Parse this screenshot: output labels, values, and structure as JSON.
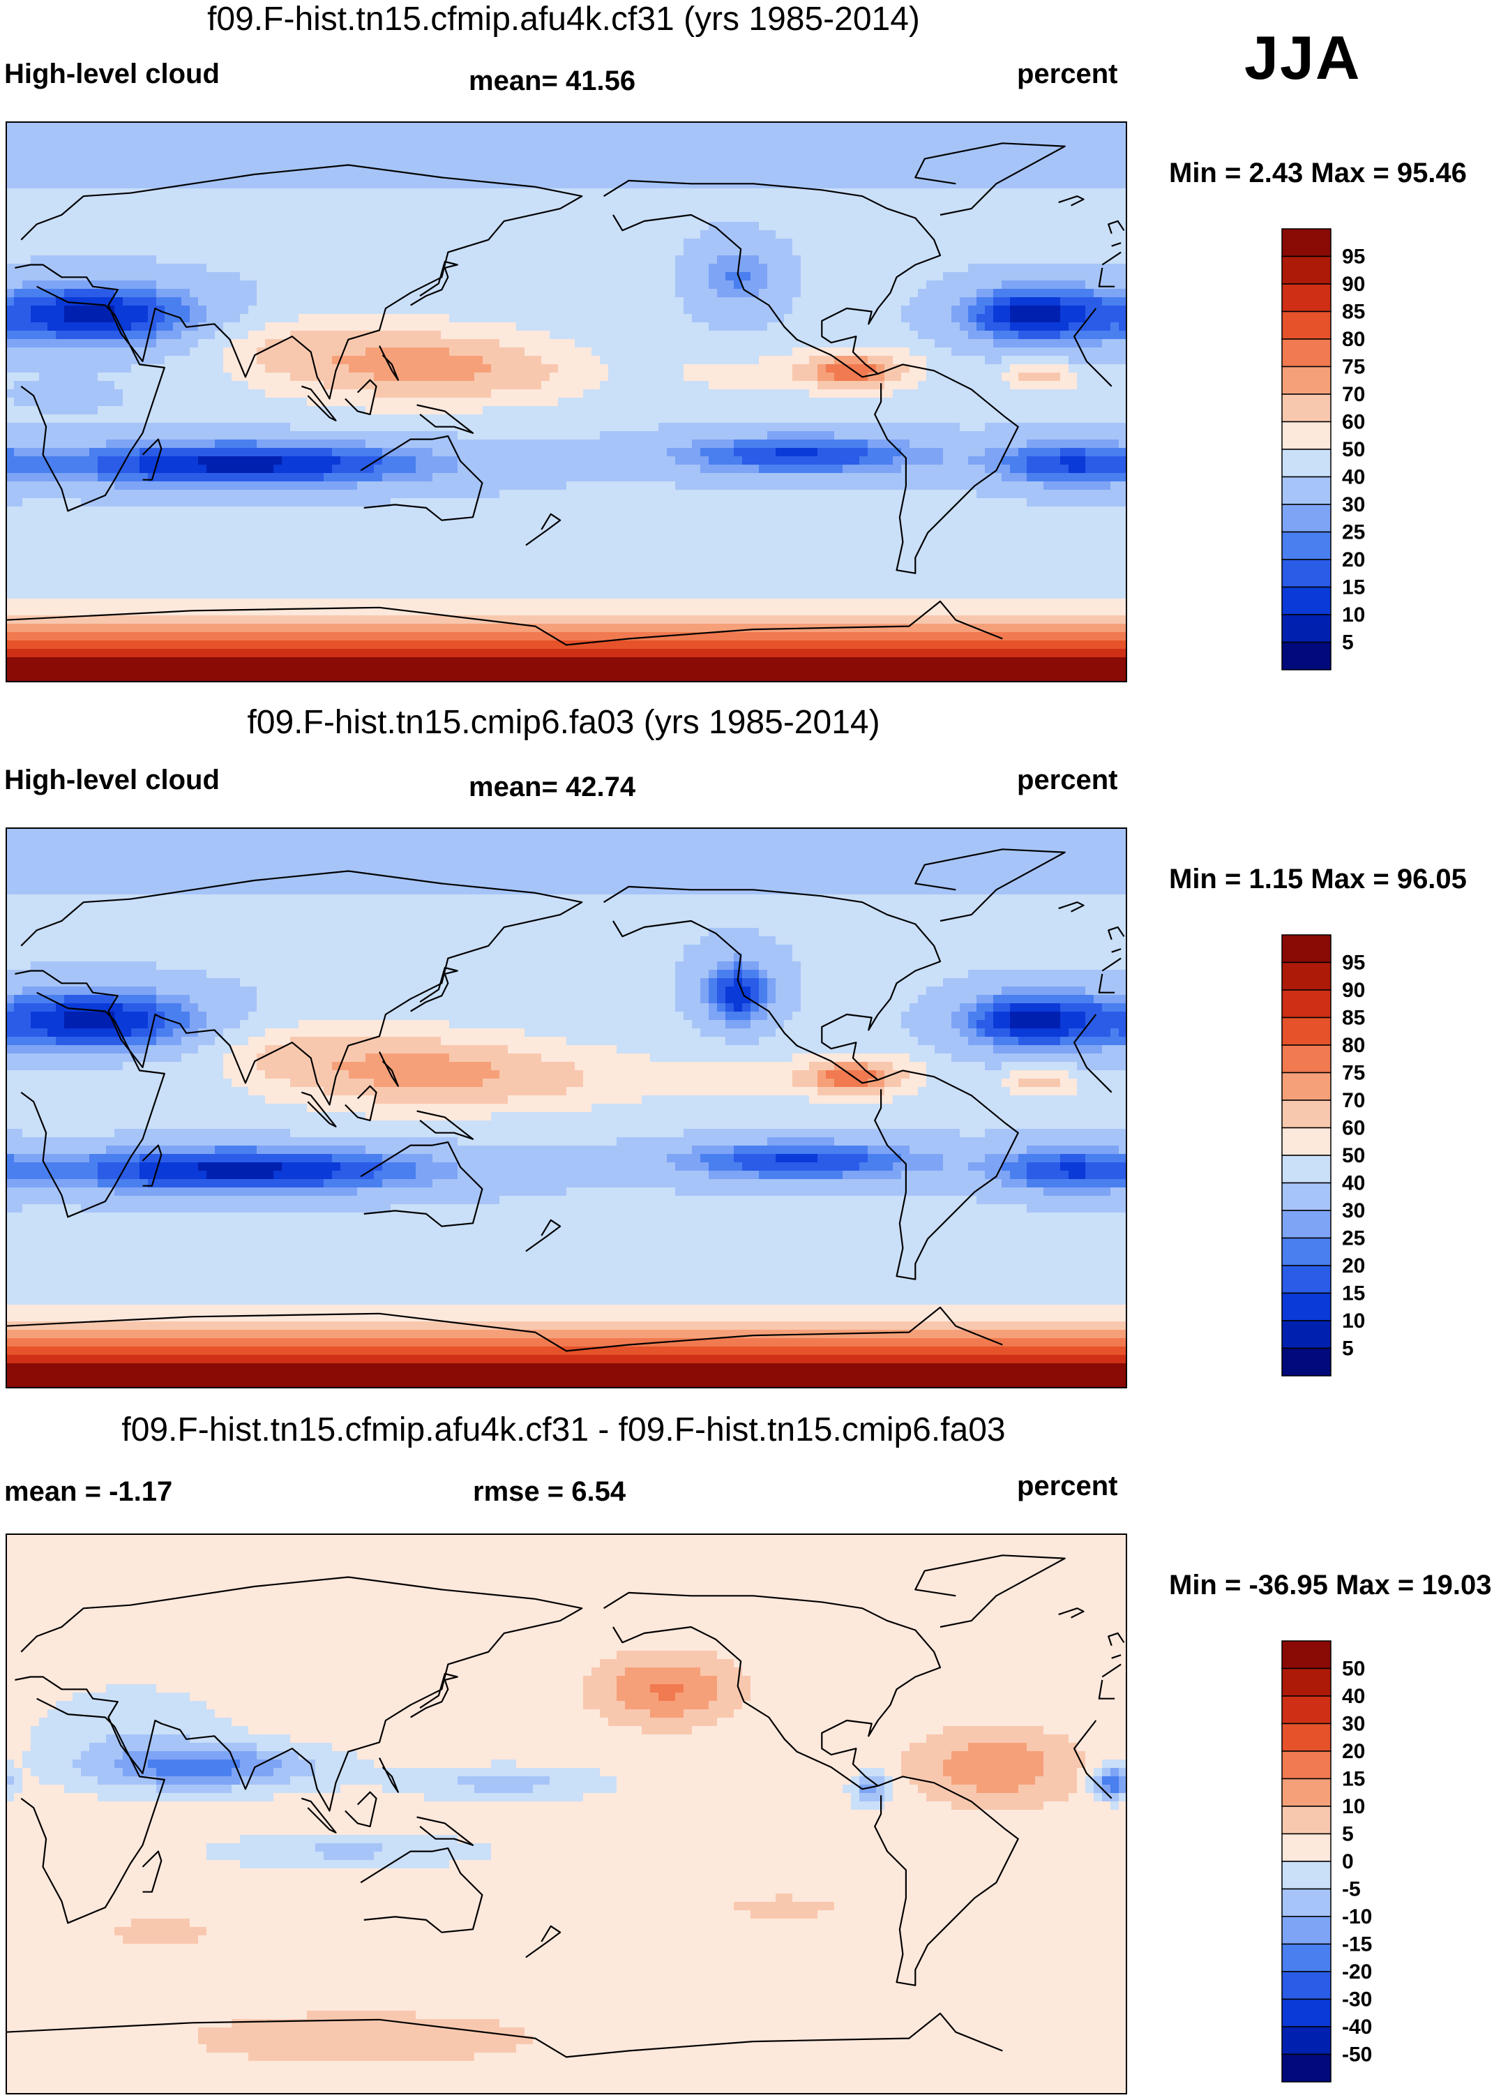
{
  "season": "JJA",
  "colors": {
    "abs_levels": [
      "#000a7a",
      "#0020b0",
      "#0a3ad8",
      "#2a5ce8",
      "#4a7ff0",
      "#7ea4f5",
      "#a6c4f8",
      "#cadff8",
      "#fde8dc",
      "#f8c8ae",
      "#f6a07a",
      "#f17a50",
      "#e6522a",
      "#cf3015",
      "#ae1a08",
      "#8a0a05"
    ],
    "diff_levels": [
      "#000a7a",
      "#0020b0",
      "#0a3ad8",
      "#2a5ce8",
      "#4a7ff0",
      "#7ea4f5",
      "#a6c4f8",
      "#cadff8",
      "#fde8dc",
      "#f8c8ae",
      "#f6a07a",
      "#f17a50",
      "#e6522a",
      "#cf3015",
      "#ae1a08",
      "#8a0a05"
    ],
    "coast": "#000000"
  },
  "chart_data": [
    {
      "type": "heatmap",
      "title": "f09.F-hist.tn15.cfmip.afu4k.cf31 (yrs 1985-2014)",
      "left_label": "High-level cloud",
      "center_label": "mean=  41.56",
      "right_label": "percent",
      "min_max": "Min =   2.43 Max =  95.46",
      "stats": {
        "mean": 41.56,
        "min": 2.43,
        "max": 95.46
      },
      "colorbar_labels": [
        "95",
        "90",
        "85",
        "80",
        "75",
        "70",
        "60",
        "50",
        "40",
        "30",
        "25",
        "20",
        "15",
        "10",
        "5"
      ],
      "lon_range": [
        0,
        360
      ],
      "lat_range": [
        -90,
        90
      ],
      "variant": 0
    },
    {
      "type": "heatmap",
      "title": "f09.F-hist.tn15.cmip6.fa03 (yrs 1985-2014)",
      "left_label": "High-level cloud",
      "center_label": "mean=  42.74",
      "right_label": "percent",
      "min_max": "Min =   1.15 Max =  96.05",
      "stats": {
        "mean": 42.74,
        "min": 1.15,
        "max": 96.05
      },
      "colorbar_labels": [
        "95",
        "90",
        "85",
        "80",
        "75",
        "70",
        "60",
        "50",
        "40",
        "30",
        "25",
        "20",
        "15",
        "10",
        "5"
      ],
      "lon_range": [
        0,
        360
      ],
      "lat_range": [
        -90,
        90
      ],
      "variant": 1
    },
    {
      "type": "heatmap",
      "title": "f09.F-hist.tn15.cfmip.afu4k.cf31 - f09.F-hist.tn15.cmip6.fa03",
      "left_label": "mean =  -1.17",
      "center_label": "rmse =   6.54",
      "right_label": "percent",
      "min_max": "Min = -36.95 Max =  19.03",
      "stats": {
        "mean": -1.17,
        "rmse": 6.54,
        "min": -36.95,
        "max": 19.03
      },
      "colorbar_labels": [
        "50",
        "40",
        "30",
        "20",
        "15",
        "10",
        "5",
        "0",
        "-5",
        "-10",
        "-15",
        "-20",
        "-30",
        "-40",
        "-50"
      ],
      "lon_range": [
        0,
        360
      ],
      "lat_range": [
        -90,
        90
      ],
      "variant": 2
    }
  ]
}
